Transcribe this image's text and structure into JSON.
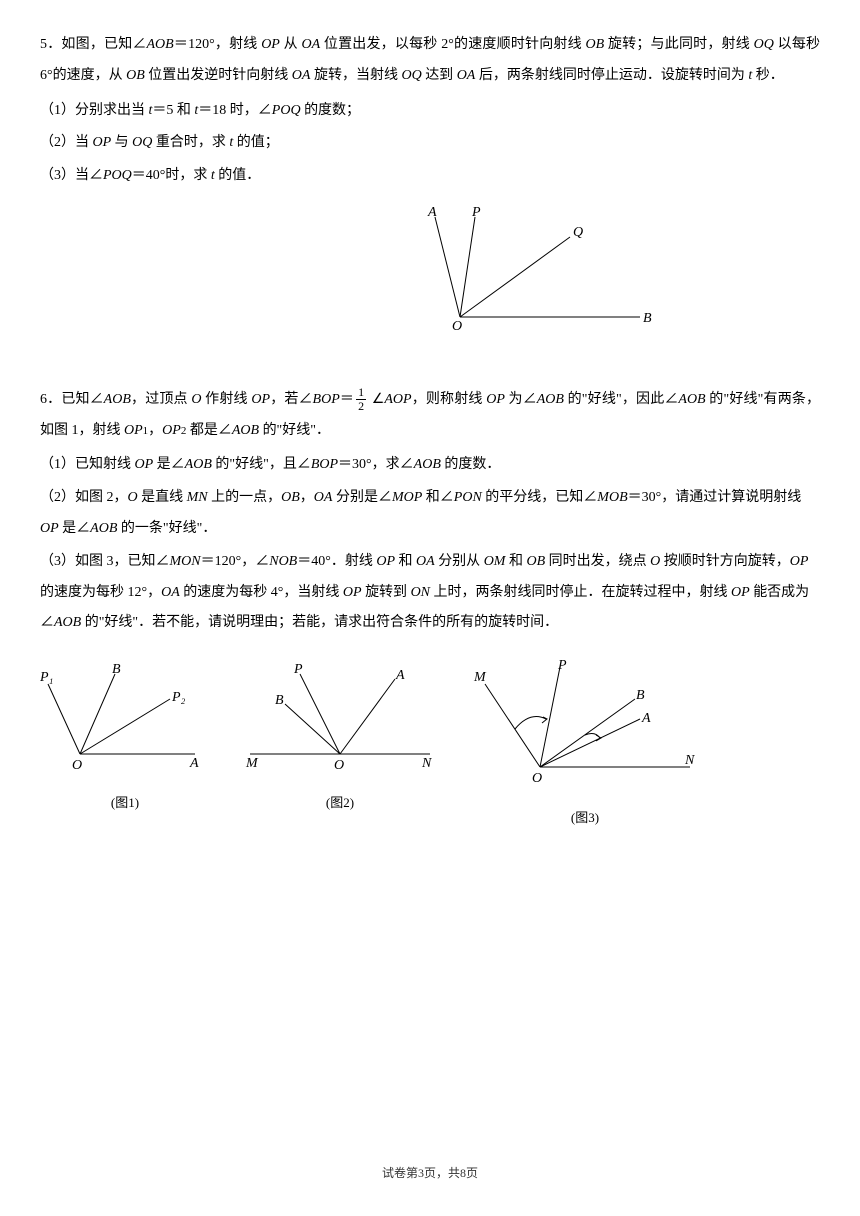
{
  "problem5": {
    "main": "5．如图，已知∠<span class='italic'>AOB</span>＝120°，射线 <span class='italic'>OP</span> 从 <span class='italic'>OA</span> 位置出发，以每秒 2°的速度顺时针向射线 <span class='italic'>OB</span> 旋转；与此同时，射线 <span class='italic'>OQ</span> 以每秒 6°的速度，从 <span class='italic'>OB</span> 位置出发逆时针向射线 <span class='italic'>OA</span> 旋转，当射线 <span class='italic'>OQ</span> 达到 <span class='italic'>OA</span> 后，两条射线同时停止运动．设旋转时间为 <span class='italic'>t</span> 秒．",
    "q1": "（1）分别求出当 <span class='italic'>t</span>＝5 和 <span class='italic'>t</span>＝18 时，∠<span class='italic'>POQ</span> 的度数；",
    "q2": "（2）当 <span class='italic'>OP</span> 与 <span class='italic'>OQ</span> 重合时，求 <span class='italic'>t</span> 的值；",
    "q3": "（3）当∠<span class='italic'>POQ</span>＝40°时，求 <span class='italic'>t</span> 的值．",
    "figure": {
      "labels": {
        "A": "A",
        "P": "P",
        "Q": "Q",
        "O": "O",
        "B": "B"
      },
      "stroke_color": "#000",
      "stroke_width": 1
    }
  },
  "problem6": {
    "main_pre": "6．已知∠<span class='italic'>AOB</span>，过顶点 <span class='italic'>O</span> 作射线 <span class='italic'>OP</span>，若∠<span class='italic'>BOP</span>＝",
    "frac_num": "1",
    "frac_den": "2",
    "main_post": "∠<span class='italic'>AOP</span>，则称射线 <span class='italic'>OP</span> 为∠<span class='italic'>AOB</span> 的\"好线\"，因此∠<span class='italic'>AOB</span> 的\"好线\"有两条，如图 1，射线 <span class='italic'>OP</span><span class='sub-label'>1</span>，<span class='italic'>OP</span><span class='sub-label'>2</span> 都是∠<span class='italic'>AOB</span> 的\"好线\"．",
    "q1": "（1）已知射线 <span class='italic'>OP</span> 是∠<span class='italic'>AOB</span> 的\"好线\"，且∠<span class='italic'>BOP</span>＝30°，求∠<span class='italic'>AOB</span> 的度数．",
    "q2": "（2）如图 2，<span class='italic'>O</span> 是直线 <span class='italic'>MN</span> 上的一点，<span class='italic'>OB</span>，<span class='italic'>OA</span> 分别是∠<span class='italic'>MOP</span> 和∠<span class='italic'>PON</span> 的平分线，已知∠<span class='italic'>MOB</span>＝30°，请通过计算说明射线 <span class='italic'>OP</span> 是∠<span class='italic'>AOB</span> 的一条\"好线\"．",
    "q3": "（3）如图 3，已知∠<span class='italic'>MON</span>＝120°，∠<span class='italic'>NOB</span>＝40°．射线 <span class='italic'>OP</span> 和 <span class='italic'>OA</span> 分别从 <span class='italic'>OM</span> 和 <span class='italic'>OB</span> 同时出发，绕点 <span class='italic'>O</span> 按顺时针方向旋转，<span class='italic'>OP</span> 的速度为每秒 12°，<span class='italic'>OA</span> 的速度为每秒 4°，当射线 <span class='italic'>OP</span> 旋转到 <span class='italic'>ON</span> 上时，两条射线同时停止．在旋转过程中，射线 <span class='italic'>OP</span> 能否成为∠<span class='italic'>AOB</span> 的\"好线\"．若不能，请说明理由；若能，请求出符合条件的所有的旋转时间．",
    "figures": {
      "caption1": "(图1)",
      "caption2": "(图2)",
      "caption3": "(图3)",
      "stroke_color": "#000",
      "stroke_width": 1
    }
  },
  "footer": "试卷第3页，共8页"
}
